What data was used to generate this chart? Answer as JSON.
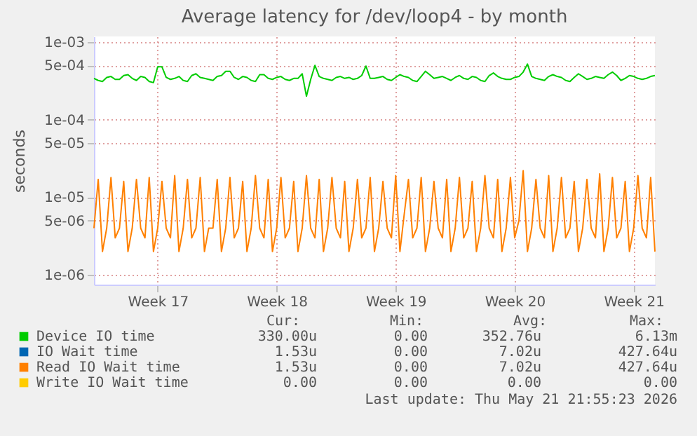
{
  "chart_data": {
    "type": "line",
    "title": "Average latency for /dev/loop4 - by month",
    "ylabel": "seconds",
    "log": true,
    "grid": true,
    "legend": "bottom",
    "marker": "none",
    "line_style": "solid",
    "categories": [
      null,
      null,
      null,
      null,
      null,
      null,
      null,
      null,
      null,
      null,
      null,
      null,
      null,
      null,
      null,
      "Week 17",
      null,
      null,
      null,
      null,
      null,
      null,
      null,
      null,
      null,
      null,
      null,
      null,
      null,
      null,
      null,
      null,
      null,
      null,
      null,
      null,
      null,
      null,
      null,
      null,
      null,
      null,
      null,
      "Week 18",
      null,
      null,
      null,
      null,
      null,
      null,
      null,
      null,
      null,
      null,
      null,
      null,
      null,
      null,
      null,
      null,
      null,
      null,
      null,
      null,
      null,
      null,
      null,
      null,
      null,
      null,
      null,
      "Week 19",
      null,
      null,
      null,
      null,
      null,
      null,
      null,
      null,
      null,
      null,
      null,
      null,
      null,
      null,
      null,
      null,
      null,
      null,
      null,
      null,
      null,
      null,
      null,
      null,
      null,
      null,
      null,
      "Week 20",
      null,
      null,
      null,
      null,
      null,
      null,
      null,
      null,
      null,
      null,
      null,
      null,
      null,
      null,
      null,
      null,
      null,
      null,
      null,
      null,
      null,
      null,
      null,
      null,
      null,
      null,
      null,
      "Week 21",
      null,
      null,
      null,
      null,
      null
    ],
    "ylim": [
      7.5e-07,
      0.00118
    ],
    "yticks": [
      {
        "value": 1e-06,
        "label": "1e-06"
      },
      {
        "value": 5e-06,
        "label": "5e-06"
      },
      {
        "value": 1e-05,
        "label": "1e-05"
      },
      {
        "value": 5e-05,
        "label": "5e-05"
      },
      {
        "value": 0.0001,
        "label": "1e-04"
      },
      {
        "value": 0.0005,
        "label": "5e-04"
      },
      {
        "value": 0.001,
        "label": "1e-03"
      }
    ],
    "series": [
      {
        "name": "Device IO time",
        "color": "#00cc00",
        "values": [
          0.00034,
          0.00032,
          0.00031,
          0.00035,
          0.00036,
          0.00033,
          0.00033,
          0.00037,
          0.00038,
          0.00034,
          0.00032,
          0.00036,
          0.00035,
          0.00031,
          0.0003,
          0.00048,
          0.00048,
          0.00035,
          0.00033,
          0.00034,
          0.00036,
          0.00032,
          0.00031,
          0.00037,
          0.00039,
          0.00035,
          0.00034,
          0.00033,
          0.00032,
          0.00036,
          0.00037,
          0.00042,
          0.00042,
          0.00035,
          0.00033,
          0.00036,
          0.00035,
          0.00032,
          0.00031,
          0.00038,
          0.00038,
          0.00034,
          0.00033,
          0.00035,
          0.00036,
          0.00033,
          0.00032,
          0.00034,
          0.00034,
          0.00039,
          0.0002,
          0.00033,
          0.0005,
          0.00036,
          0.00034,
          0.00033,
          0.00032,
          0.00035,
          0.00036,
          0.00034,
          0.00035,
          0.00033,
          0.00034,
          0.00037,
          0.00049,
          0.00034,
          0.00034,
          0.00035,
          0.00036,
          0.00033,
          0.00032,
          0.00035,
          0.00038,
          0.00036,
          0.00035,
          0.00032,
          0.00031,
          0.00036,
          0.00042,
          0.00038,
          0.00034,
          0.00035,
          0.00036,
          0.00034,
          0.00032,
          0.00035,
          0.00037,
          0.00034,
          0.00033,
          0.00036,
          0.00035,
          0.00032,
          0.00031,
          0.00037,
          0.0004,
          0.00036,
          0.00034,
          0.00033,
          0.00033,
          0.00035,
          0.00036,
          0.00041,
          0.00052,
          0.00036,
          0.00034,
          0.00033,
          0.00032,
          0.00036,
          0.00038,
          0.00036,
          0.00035,
          0.00032,
          0.00031,
          0.00035,
          0.00039,
          0.00036,
          0.00033,
          0.00034,
          0.00036,
          0.00035,
          0.00034,
          0.00038,
          0.00041,
          0.00037,
          0.00032,
          0.00034,
          0.00037,
          0.00036,
          0.00034,
          0.00033,
          0.00034,
          0.00036,
          0.00037
        ]
      },
      {
        "name": "IO Wait time",
        "color": "#0066b3",
        "values": [
          null,
          null,
          null,
          null,
          null,
          null,
          null,
          null,
          null,
          null,
          null,
          null,
          null,
          null,
          null,
          null,
          null,
          null,
          null,
          null,
          null,
          null,
          null,
          null,
          null,
          null,
          null,
          null,
          null,
          null,
          null,
          null,
          null,
          null,
          null,
          null,
          null,
          null,
          null,
          null,
          null,
          null,
          null,
          null,
          null,
          null,
          null,
          null,
          null,
          null,
          null,
          null,
          null,
          null,
          null,
          null,
          null,
          null,
          null,
          null,
          null,
          null,
          null,
          null,
          null,
          null,
          null,
          null,
          null,
          null,
          null,
          null,
          null,
          null,
          null,
          null,
          null,
          null,
          null,
          null,
          null,
          null,
          null,
          null,
          null,
          null,
          null,
          null,
          null,
          null,
          null,
          null,
          null,
          null,
          null,
          null,
          null,
          null,
          null,
          null,
          null,
          null,
          null,
          null,
          null,
          null,
          null,
          null,
          null,
          null,
          null,
          null,
          null,
          null,
          null,
          null,
          null,
          null,
          null,
          null,
          null,
          null,
          null,
          null,
          null,
          null,
          null,
          null,
          null,
          null,
          null,
          null,
          null
        ]
      },
      {
        "name": "Read IO Wait time",
        "color": "#ff8000",
        "values": [
          4e-06,
          1.7e-05,
          2e-06,
          4e-06,
          1.8e-05,
          3e-06,
          4e-06,
          1.6e-05,
          2e-06,
          4e-06,
          1.7e-05,
          4e-06,
          3e-06,
          1.8e-05,
          2e-06,
          4e-06,
          1.6e-05,
          4e-06,
          3e-06,
          1.9e-05,
          2e-06,
          4e-06,
          1.7e-05,
          3e-06,
          4e-06,
          1.8e-05,
          2e-06,
          4e-06,
          4e-06,
          1.7e-05,
          2e-06,
          4e-06,
          1.8e-05,
          3e-06,
          4e-06,
          1.6e-05,
          2e-06,
          4e-06,
          1.9e-05,
          4e-06,
          3e-06,
          1.7e-05,
          2e-06,
          4e-06,
          1.8e-05,
          3e-06,
          4e-06,
          1.6e-05,
          2e-06,
          4e-06,
          1.9e-05,
          4e-06,
          3e-06,
          1.7e-05,
          2e-06,
          4e-06,
          1.8e-05,
          4e-06,
          3e-06,
          1.6e-05,
          2e-06,
          4e-06,
          1.7e-05,
          3e-06,
          4e-06,
          1.8e-05,
          2e-06,
          4e-06,
          1.6e-05,
          4e-06,
          3e-06,
          1.9e-05,
          2e-06,
          6e-06,
          1.7e-05,
          3e-06,
          4e-06,
          1.8e-05,
          2e-06,
          4e-06,
          1.6e-05,
          4e-06,
          3e-06,
          1.7e-05,
          2e-06,
          4e-06,
          1.8e-05,
          3e-06,
          4e-06,
          1.6e-05,
          2e-06,
          4e-06,
          1.9e-05,
          4e-06,
          3e-06,
          1.7e-05,
          2e-06,
          4e-06,
          1.8e-05,
          3e-06,
          5e-06,
          2.2e-05,
          2e-06,
          4e-06,
          1.7e-05,
          4e-06,
          3e-06,
          1.9e-05,
          2e-06,
          4e-06,
          1.8e-05,
          3e-06,
          4e-06,
          1.6e-05,
          2e-06,
          4e-06,
          1.7e-05,
          4e-06,
          3e-06,
          2e-05,
          2e-06,
          4e-06,
          1.8e-05,
          3e-06,
          4e-06,
          1.6e-05,
          2e-06,
          4e-06,
          1.9e-05,
          4e-06,
          3e-06,
          1.8e-05,
          2e-06
        ]
      },
      {
        "name": "Write IO Wait time",
        "color": "#ffcc00",
        "values": [
          null,
          null,
          null,
          null,
          null,
          null,
          null,
          null,
          null,
          null,
          null,
          null,
          null,
          null,
          null,
          null,
          null,
          null,
          null,
          null,
          null,
          null,
          null,
          null,
          null,
          null,
          null,
          null,
          null,
          null,
          null,
          null,
          null,
          null,
          null,
          null,
          null,
          null,
          null,
          null,
          null,
          null,
          null,
          null,
          null,
          null,
          null,
          null,
          null,
          null,
          null,
          null,
          null,
          null,
          null,
          null,
          null,
          null,
          null,
          null,
          null,
          null,
          null,
          null,
          null,
          null,
          null,
          null,
          null,
          null,
          null,
          null,
          null,
          null,
          null,
          null,
          null,
          null,
          null,
          null,
          null,
          null,
          null,
          null,
          null,
          null,
          null,
          null,
          null,
          null,
          null,
          null,
          null,
          null,
          null,
          null,
          null,
          null,
          null,
          null,
          null,
          null,
          null,
          null,
          null,
          null,
          null,
          null,
          null,
          null,
          null,
          null,
          null,
          null,
          null,
          null,
          null,
          null,
          null,
          null,
          null,
          null,
          null,
          null,
          null,
          null,
          null,
          null,
          null,
          null,
          null,
          null,
          null
        ]
      }
    ],
    "annotations": [
      "Cur:",
      "Min:",
      "Avg:",
      "Max:",
      "330.00u",
      "0.00",
      "352.76u",
      "6.13m",
      "1.53u",
      "0.00",
      "7.02u",
      "427.64u",
      "1.53u",
      "0.00",
      "7.02u",
      "427.64u",
      "0.00",
      "0.00",
      "0.00",
      "0.00",
      "Last update: Thu May 21 21:55:23 2026"
    ]
  }
}
